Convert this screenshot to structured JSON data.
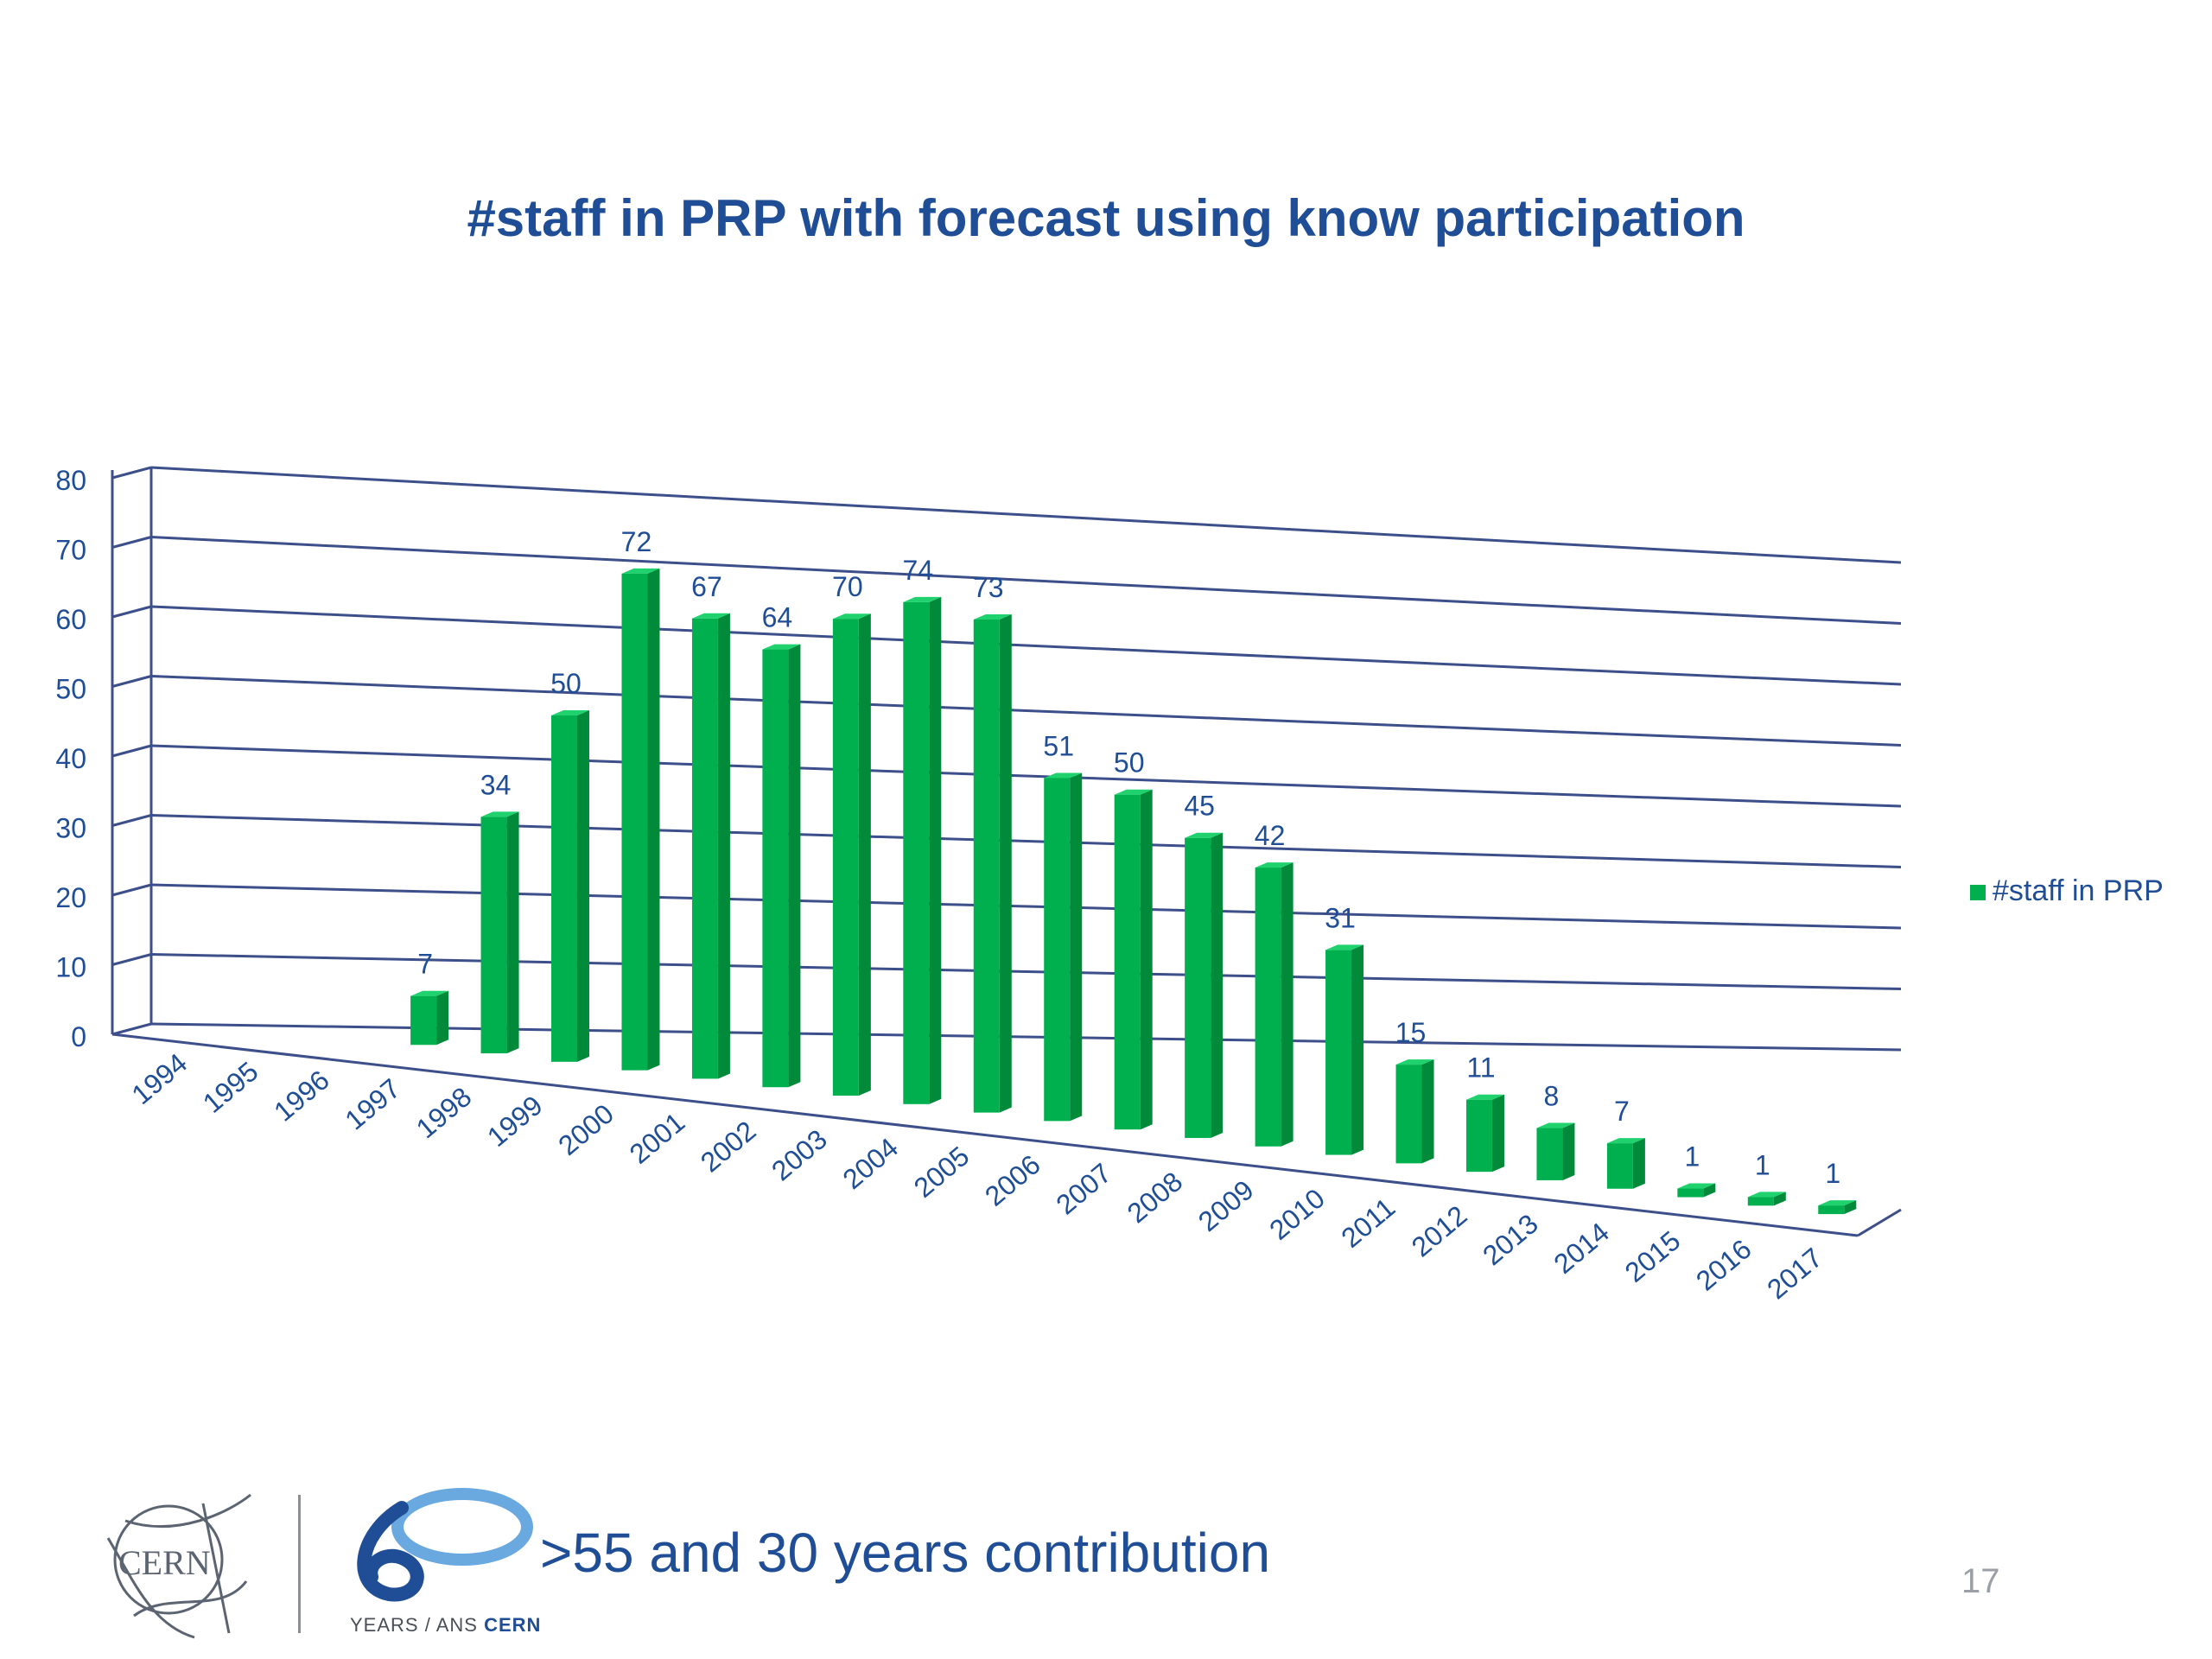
{
  "slide": {
    "title": "#staff in PRP with forecast using know participation",
    "footer_text": ">55 and  30 years contribution",
    "page_number": "17",
    "logo_text": "CERN",
    "anniversary_caption_a": "YEARS / ANS ",
    "anniversary_caption_b": "CERN"
  },
  "colors": {
    "title": "#1f4e96",
    "bar_front": "#00b04f",
    "bar_side": "#008a3a",
    "bar_top": "#1fd26e",
    "grid": "#3c4f8a",
    "axis_text": "#1f4e96",
    "data_label": "#1f4e96"
  },
  "chart_data": {
    "type": "bar",
    "title": "",
    "xlabel": "",
    "ylabel": "",
    "ylim": [
      0,
      80
    ],
    "yticks": [
      0,
      10,
      20,
      30,
      40,
      50,
      60,
      70,
      80
    ],
    "grid": true,
    "legend_position": "right",
    "categories": [
      "1994",
      "1995",
      "1996",
      "1997",
      "1998",
      "1999",
      "2000",
      "2001",
      "2002",
      "2003",
      "2004",
      "2005",
      "2006",
      "2007",
      "2008",
      "2009",
      "2010",
      "2011",
      "2012",
      "2013",
      "2014",
      "2015",
      "2016",
      "2017"
    ],
    "series": [
      {
        "name": "#staff in PRP",
        "values": [
          null,
          null,
          null,
          7,
          34,
          50,
          72,
          67,
          64,
          70,
          74,
          73,
          51,
          50,
          45,
          42,
          31,
          15,
          11,
          8,
          7,
          1,
          1,
          1
        ]
      }
    ]
  }
}
